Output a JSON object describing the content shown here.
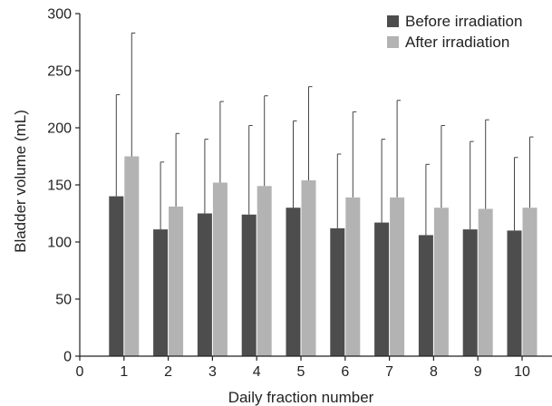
{
  "chart_data": {
    "type": "bar",
    "title": "",
    "xlabel": "Daily fraction number",
    "ylabel": "Bladder volume (mL)",
    "ylim": [
      0,
      300
    ],
    "y_ticks": [
      "0",
      "50",
      "100",
      "150",
      "200",
      "250",
      "300"
    ],
    "x_ticks": [
      "0",
      "1",
      "2",
      "3",
      "4",
      "5",
      "6",
      "7",
      "8",
      "9",
      "10"
    ],
    "categories": [
      "1",
      "2",
      "3",
      "4",
      "5",
      "6",
      "7",
      "8",
      "9",
      "10"
    ],
    "legend_position": "top-right",
    "grid": false,
    "series": [
      {
        "name": "Before irradiation",
        "color": "#4d4d4d",
        "values": [
          140,
          111,
          125,
          124,
          130,
          112,
          117,
          106,
          111,
          110
        ],
        "error_upper": [
          229,
          170,
          190,
          202,
          206,
          177,
          190,
          168,
          188,
          174
        ]
      },
      {
        "name": "After irradiation",
        "color": "#b3b3b3",
        "values": [
          175,
          131,
          152,
          149,
          154,
          139,
          139,
          130,
          129,
          130
        ],
        "error_upper": [
          283,
          195,
          223,
          228,
          236,
          214,
          224,
          202,
          207,
          192
        ]
      }
    ]
  }
}
